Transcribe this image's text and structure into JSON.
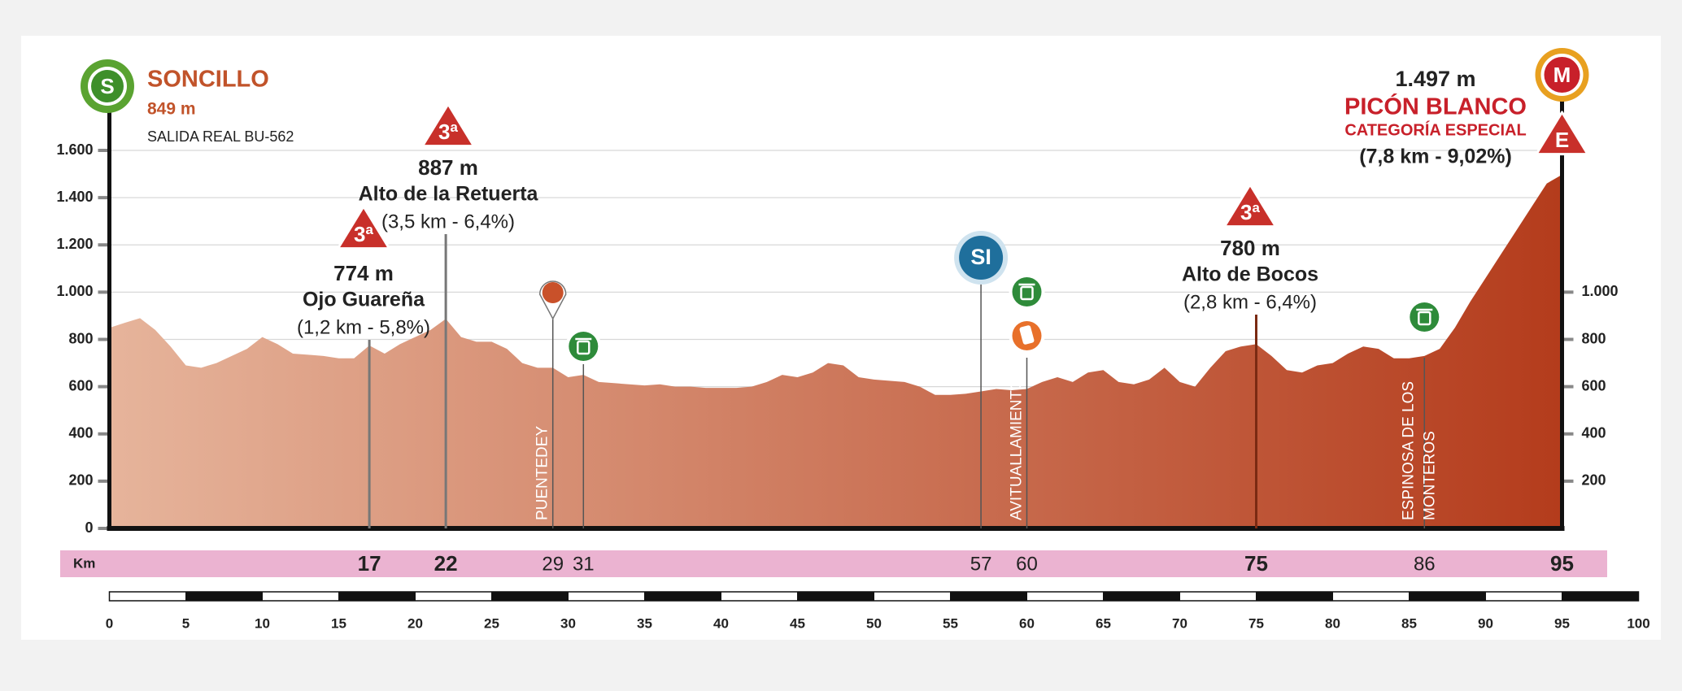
{
  "chart_data": {
    "type": "area",
    "x": [
      0,
      1,
      2,
      3,
      4,
      5,
      6,
      7,
      8,
      9,
      10,
      11,
      12,
      13,
      14,
      15,
      16,
      17,
      18,
      19,
      20,
      21,
      22,
      23,
      24,
      25,
      26,
      27,
      28,
      29,
      30,
      31,
      32,
      33,
      34,
      35,
      36,
      37,
      38,
      39,
      40,
      41,
      42,
      43,
      44,
      45,
      46,
      47,
      48,
      49,
      50,
      51,
      52,
      53,
      54,
      55,
      56,
      57,
      58,
      59,
      60,
      61,
      62,
      63,
      64,
      65,
      66,
      67,
      68,
      69,
      70,
      71,
      72,
      73,
      74,
      75,
      76,
      77,
      78,
      79,
      80,
      81,
      82,
      83,
      84,
      85,
      86,
      87,
      88,
      89,
      90,
      91,
      92,
      93,
      94,
      95
    ],
    "values": [
      849,
      870,
      890,
      840,
      770,
      690,
      680,
      700,
      730,
      760,
      810,
      780,
      740,
      735,
      730,
      720,
      720,
      774,
      740,
      780,
      810,
      840,
      887,
      810,
      790,
      790,
      760,
      700,
      680,
      680,
      640,
      650,
      620,
      615,
      610,
      605,
      610,
      600,
      600,
      595,
      595,
      595,
      600,
      620,
      650,
      640,
      660,
      700,
      690,
      640,
      630,
      625,
      620,
      600,
      565,
      565,
      570,
      580,
      590,
      585,
      590,
      620,
      640,
      620,
      660,
      670,
      620,
      610,
      630,
      680,
      620,
      600,
      680,
      750,
      770,
      780,
      730,
      670,
      660,
      690,
      700,
      740,
      770,
      760,
      720,
      720,
      730,
      760,
      850,
      960,
      1060,
      1160,
      1260,
      1360,
      1460,
      1497
    ],
    "colors": [
      "#e6b49b",
      "#b43c1c"
    ],
    "xlim": [
      0,
      100
    ],
    "xticks": [
      0,
      5,
      10,
      15,
      20,
      25,
      30,
      35,
      40,
      45,
      50,
      55,
      60,
      65,
      70,
      75,
      80,
      85,
      90,
      95,
      100
    ],
    "ylim": [
      0,
      1600
    ],
    "yticks": [
      0,
      200,
      400,
      600,
      800,
      {
        "value": 1000,
        "label": "1.000"
      },
      {
        "value": 1200,
        "label": "1.200"
      },
      {
        "value": 1400,
        "label": "1.400"
      },
      {
        "value": 1600,
        "label": "1.600"
      }
    ],
    "y2lim": [
      0,
      1600
    ],
    "y2ticks": [
      200,
      400,
      600,
      800,
      {
        "value": 1000,
        "label": "1.000"
      }
    ],
    "grid": true,
    "km_label": "Km",
    "km_marks": [
      {
        "value": 17,
        "bold": true
      },
      {
        "value": 22,
        "bold": true
      },
      {
        "value": 29,
        "bold": false
      },
      {
        "value": 31,
        "bold": false
      },
      {
        "value": 57,
        "bold": false
      },
      {
        "value": 60,
        "bold": false
      },
      {
        "value": 75,
        "bold": true
      },
      {
        "value": 86,
        "bold": false
      },
      {
        "value": 95,
        "bold": true
      }
    ],
    "start": {
      "icon": "S",
      "name": "SONCILLO",
      "altitude": "849 m",
      "note": "SALIDA REAL BU-562"
    },
    "finish": {
      "icon": "M",
      "category_icon": "E",
      "altitude": "1.497 m",
      "name": "PICÓN BLANCO",
      "category": "CATEGORÍA ESPECIAL",
      "detail": "(7,8 km - 9,02%)"
    },
    "climbs": [
      {
        "km": 17,
        "category": "3ª",
        "altitude": "774 m",
        "name": "Ojo Guareña",
        "detail": "(1,2 km - 5,8%)"
      },
      {
        "km": 22,
        "category": "3ª",
        "altitude": "887 m",
        "name": "Alto de la Retuerta",
        "detail": "(3,5 km - 6,4%)"
      },
      {
        "km": 75,
        "category": "3ª",
        "altitude": "780 m",
        "name": "Alto de Bocos",
        "detail": "(2,8 km - 6,4%)"
      }
    ],
    "places": [
      {
        "km": 29,
        "label_lines": [
          "PUENTEDEY"
        ]
      },
      {
        "km": 60,
        "label_lines": [
          "AVITUALLAMIENTO"
        ]
      },
      {
        "km": 86,
        "label_lines": [
          "ESPINOSA DE LOS",
          "MONTEROS"
        ]
      }
    ],
    "sprint": {
      "km": 57,
      "icon": "SI"
    }
  }
}
